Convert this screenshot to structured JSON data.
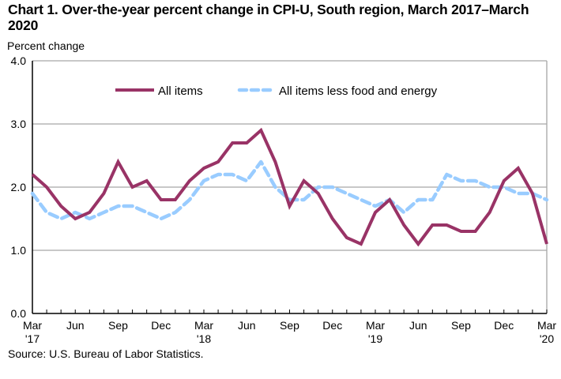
{
  "chart_data": {
    "type": "line",
    "title": "Chart 1. Over-the-year percent change in CPI-U, South region, March 2017–March 2020",
    "ylabel": "Percent change",
    "xlabel": "",
    "ylim": [
      0.0,
      4.0
    ],
    "yticks": [
      "0.0",
      "1.0",
      "2.0",
      "3.0",
      "4.0"
    ],
    "ytick_values": [
      0,
      1,
      2,
      3,
      4
    ],
    "grid": "horizontal",
    "legend_position": "top-center",
    "x": [
      "Mar 2017",
      "Apr 2017",
      "May 2017",
      "Jun 2017",
      "Jul 2017",
      "Aug 2017",
      "Sep 2017",
      "Oct 2017",
      "Nov 2017",
      "Dec 2017",
      "Jan 2018",
      "Feb 2018",
      "Mar 2018",
      "Apr 2018",
      "May 2018",
      "Jun 2018",
      "Jul 2018",
      "Aug 2018",
      "Sep 2018",
      "Oct 2018",
      "Nov 2018",
      "Dec 2018",
      "Jan 2019",
      "Feb 2019",
      "Mar 2019",
      "Apr 2019",
      "May 2019",
      "Jun 2019",
      "Jul 2019",
      "Aug 2019",
      "Sep 2019",
      "Oct 2019",
      "Nov 2019",
      "Dec 2019",
      "Jan 2020",
      "Feb 2020",
      "Mar 2020"
    ],
    "xtick_labels": [
      {
        "index": 0,
        "month": "Mar",
        "year": "'17"
      },
      {
        "index": 3,
        "month": "Jun",
        "year": ""
      },
      {
        "index": 6,
        "month": "Sep",
        "year": ""
      },
      {
        "index": 9,
        "month": "Dec",
        "year": ""
      },
      {
        "index": 12,
        "month": "Mar",
        "year": "'18"
      },
      {
        "index": 15,
        "month": "Jun",
        "year": ""
      },
      {
        "index": 18,
        "month": "Sep",
        "year": ""
      },
      {
        "index": 21,
        "month": "Dec",
        "year": ""
      },
      {
        "index": 24,
        "month": "Mar",
        "year": "'19"
      },
      {
        "index": 27,
        "month": "Jun",
        "year": ""
      },
      {
        "index": 30,
        "month": "Sep",
        "year": ""
      },
      {
        "index": 33,
        "month": "Dec",
        "year": ""
      },
      {
        "index": 36,
        "month": "Mar",
        "year": "'20"
      }
    ],
    "series": [
      {
        "name": "All items",
        "color": "#993366",
        "style": "solid",
        "values": [
          2.2,
          2.0,
          1.7,
          1.5,
          1.6,
          1.9,
          2.4,
          2.0,
          2.1,
          1.8,
          1.8,
          2.1,
          2.3,
          2.4,
          2.7,
          2.7,
          2.9,
          2.4,
          1.7,
          2.1,
          1.9,
          1.5,
          1.2,
          1.1,
          1.6,
          1.8,
          1.4,
          1.1,
          1.4,
          1.4,
          1.3,
          1.3,
          1.6,
          2.1,
          2.3,
          1.9,
          1.1
        ]
      },
      {
        "name": "All items less food and energy",
        "color": "#99CCFF",
        "style": "dashed",
        "values": [
          1.9,
          1.6,
          1.5,
          1.6,
          1.5,
          1.6,
          1.7,
          1.7,
          1.6,
          1.5,
          1.6,
          1.8,
          2.1,
          2.2,
          2.2,
          2.1,
          2.4,
          2.0,
          1.8,
          1.8,
          2.0,
          2.0,
          1.9,
          1.8,
          1.7,
          1.8,
          1.6,
          1.8,
          1.8,
          2.2,
          2.1,
          2.1,
          2.0,
          2.0,
          1.9,
          1.9,
          1.8
        ]
      }
    ],
    "source": "Source: U.S. Bureau of Labor Statistics."
  }
}
